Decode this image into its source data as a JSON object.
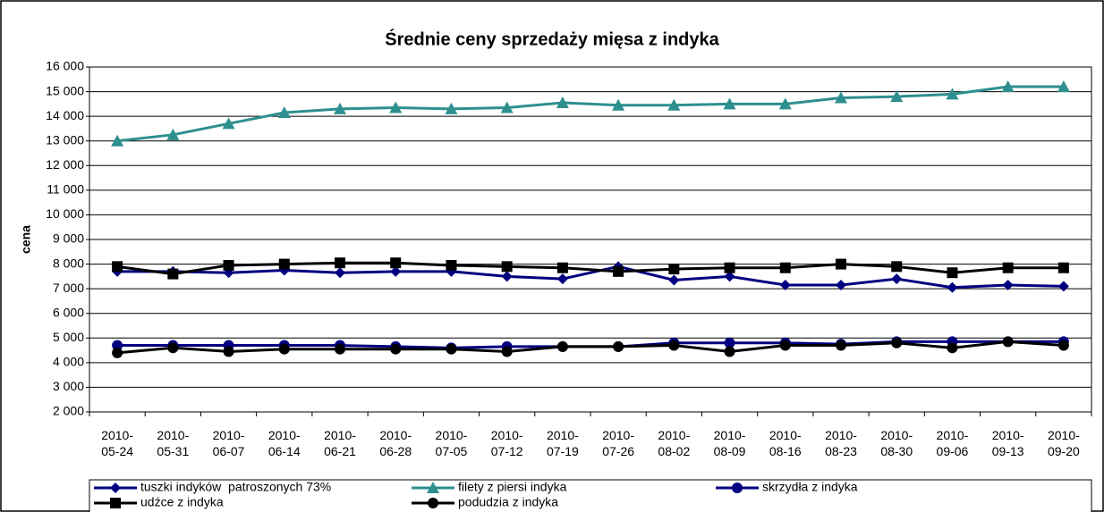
{
  "chart_data": {
    "type": "line",
    "title": "Średnie ceny sprzedaży mięsa z indyka",
    "y_label": "cena",
    "categories": [
      "2010-05-24",
      "2010-05-31",
      "2010-06-07",
      "2010-06-14",
      "2010-06-21",
      "2010-06-28",
      "2010-07-05",
      "2010-07-12",
      "2010-07-19",
      "2010-07-26",
      "2010-08-02",
      "2010-08-09",
      "2010-08-16",
      "2010-08-23",
      "2010-08-30",
      "2010-09-06",
      "2010-09-13",
      "2010-09-20"
    ],
    "ylim": [
      2000,
      16000
    ],
    "yticks": [
      {
        "value": 2000,
        "label": "2 000"
      },
      {
        "value": 3000,
        "label": "3 000"
      },
      {
        "value": 4000,
        "label": "4 000"
      },
      {
        "value": 5000,
        "label": "5 000"
      },
      {
        "value": 6000,
        "label": "6 000"
      },
      {
        "value": 7000,
        "label": "7 000"
      },
      {
        "value": 8000,
        "label": "8 000"
      },
      {
        "value": 9000,
        "label": "9 000"
      },
      {
        "value": 10000,
        "label": "10 000"
      },
      {
        "value": 11000,
        "label": "11 000"
      },
      {
        "value": 12000,
        "label": "12 000"
      },
      {
        "value": 13000,
        "label": "13 000"
      },
      {
        "value": 14000,
        "label": "14 000"
      },
      {
        "value": 15000,
        "label": "15 000"
      },
      {
        "value": 16000,
        "label": "16 000"
      }
    ],
    "grid": true,
    "legend": "bottom",
    "series": [
      {
        "name": "tuszki indyków  patroszonych 73%",
        "color": "#000080",
        "marker": "diamond",
        "values": [
          7700,
          7700,
          7650,
          7750,
          7650,
          7700,
          7700,
          7500,
          7400,
          7900,
          7350,
          7500,
          7150,
          7150,
          7400,
          7050,
          7150,
          7100
        ]
      },
      {
        "name": "filety z piersi indyka",
        "color": "#2e8f8f",
        "marker": "triangle",
        "values": [
          13000,
          13250,
          13700,
          14150,
          14300,
          14350,
          14300,
          14350,
          14550,
          14450,
          14450,
          14500,
          14500,
          14750,
          14800,
          14900,
          15200,
          15200
        ]
      },
      {
        "name": "skrzydła z indyka",
        "color": "#000080",
        "marker": "circle",
        "values": [
          4700,
          4700,
          4700,
          4700,
          4700,
          4650,
          4600,
          4650,
          4650,
          4650,
          4800,
          4800,
          4800,
          4750,
          4850,
          4850,
          4850,
          4850
        ]
      },
      {
        "name": "udźce z indyka",
        "color": "#000000",
        "marker": "square",
        "values": [
          7900,
          7600,
          7950,
          8000,
          8050,
          8050,
          7950,
          7900,
          7850,
          7700,
          7800,
          7850,
          7850,
          8000,
          7900,
          7650,
          7850,
          7850
        ]
      },
      {
        "name": "podudzia z indyka",
        "color": "#000000",
        "marker": "circle",
        "values": [
          4400,
          4600,
          4450,
          4550,
          4550,
          4550,
          4550,
          4450,
          4650,
          4650,
          4700,
          4450,
          4700,
          4700,
          4800,
          4600,
          4850,
          4700
        ]
      }
    ]
  }
}
